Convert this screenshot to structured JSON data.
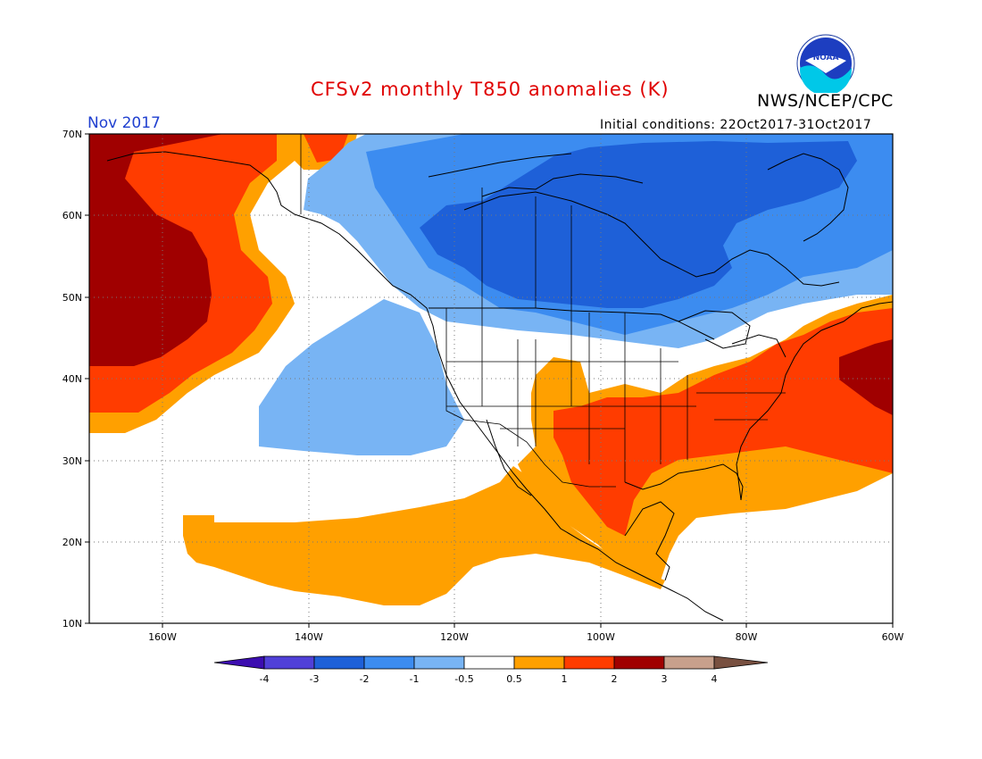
{
  "header": {
    "title": "CFSv2 monthly T850 anomalies (K)",
    "org": "NWS/NCEP/CPC",
    "month": "Nov 2017",
    "initial_conditions": "Initial conditions: 22Oct2017-31Oct2017",
    "logo_text": "NOAA"
  },
  "map": {
    "lat_labels": [
      "70N",
      "60N",
      "50N",
      "40N",
      "30N",
      "20N",
      "10N"
    ],
    "lon_labels": [
      "160W",
      "140W",
      "120W",
      "100W",
      "80W",
      "60W"
    ]
  },
  "legend": {
    "ticks": [
      "-4",
      "-3",
      "-2",
      "-1",
      "-0.5",
      "0.5",
      "1",
      "2",
      "3",
      "4"
    ],
    "colors": [
      "#3c0db0",
      "#5040d8",
      "#1e60d8",
      "#3c8cf0",
      "#78b4f4",
      "#ffffff",
      "#ffa000",
      "#ff3c00",
      "#a00000",
      "#c8a08c",
      "#785040"
    ]
  }
}
